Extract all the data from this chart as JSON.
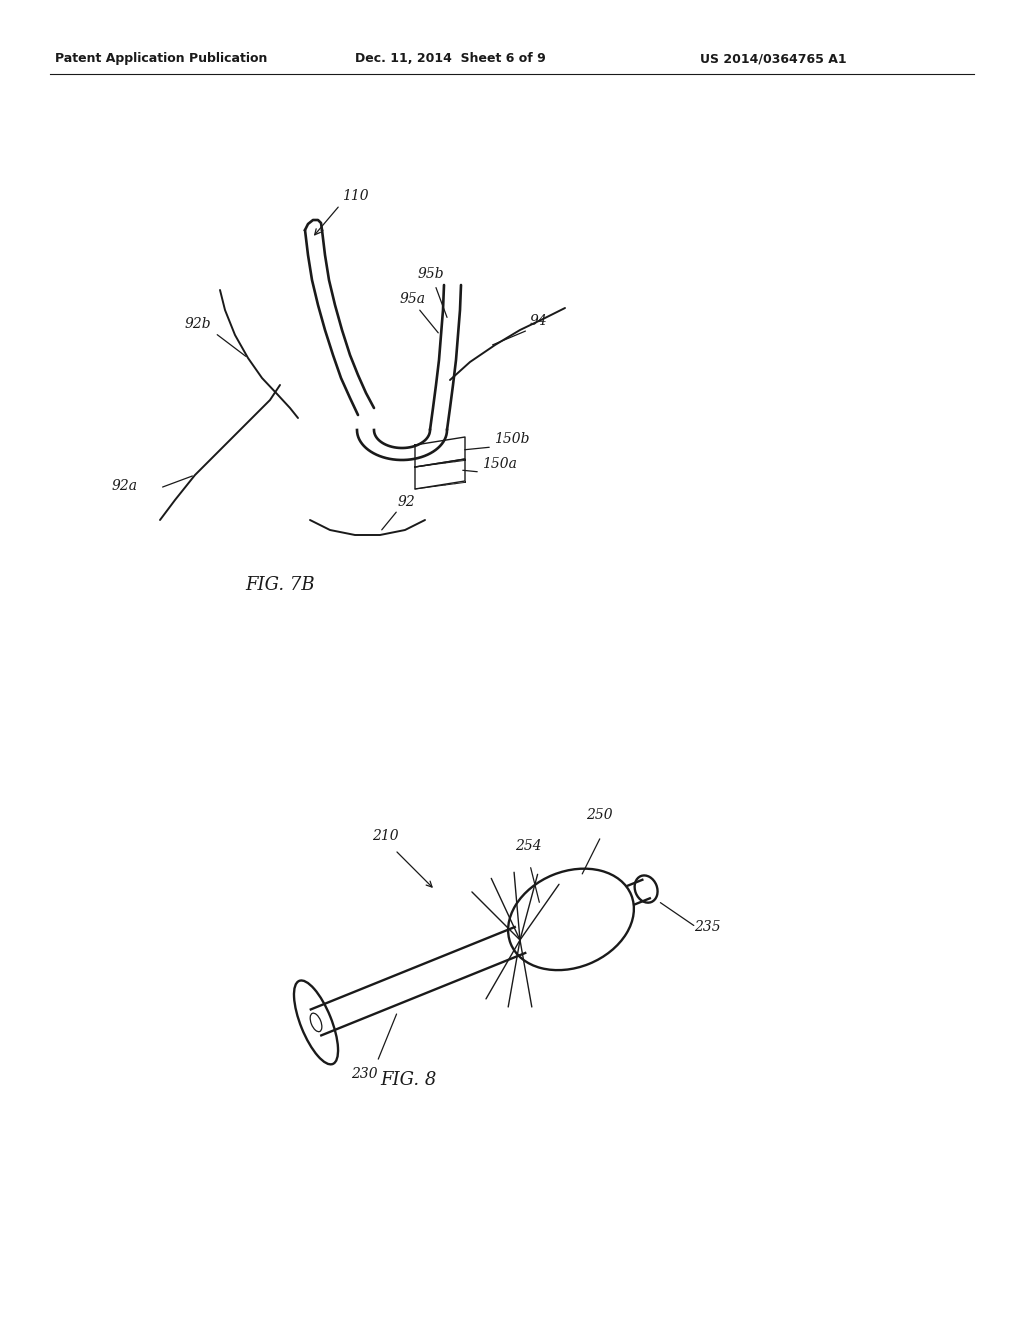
{
  "bg_color": "#ffffff",
  "header_left": "Patent Application Publication",
  "header_mid": "Dec. 11, 2014  Sheet 6 of 9",
  "header_right": "US 2014/0364765 A1",
  "fig7b_label": "FIG. 7B",
  "fig8_label": "FIG. 8",
  "line_color": "#1a1a1a",
  "label_fontsize": 10,
  "fig_label_fontsize": 13
}
